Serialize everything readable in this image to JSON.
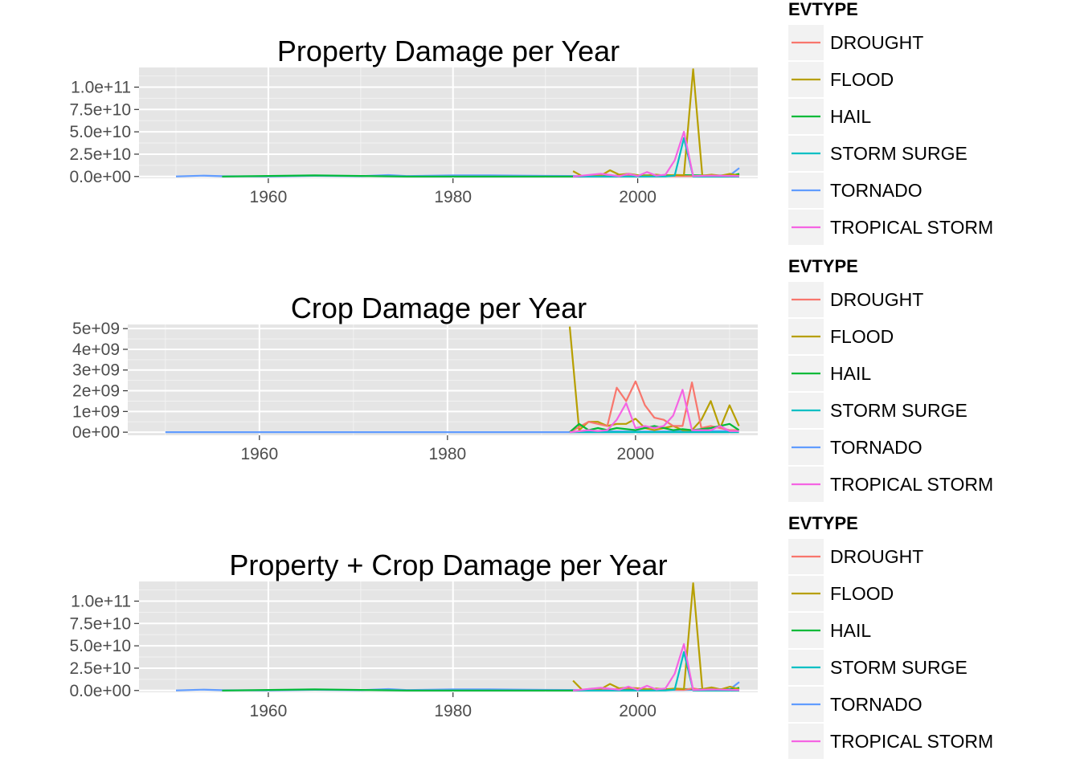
{
  "colors": {
    "panel_bg": "#e5e5e5",
    "grid": "#ffffff",
    "DROUGHT": "#f8766d",
    "FLOOD": "#b79f00",
    "HAIL": "#00ba38",
    "STORM SURGE": "#00bfc4",
    "TORNADO": "#619cff",
    "TROPICAL STORM": "#f564e3"
  },
  "legends": [
    {
      "title": "EVTYPE",
      "items": [
        "DROUGHT",
        "FLOOD",
        "HAIL",
        "STORM SURGE",
        "TORNADO",
        "TROPICAL STORM"
      ]
    },
    {
      "title": "EVTYPE",
      "items": [
        "DROUGHT",
        "FLOOD",
        "HAIL",
        "STORM SURGE",
        "TORNADO",
        "TROPICAL STORM"
      ]
    },
    {
      "title": "EVTYPE",
      "items": [
        "DROUGHT",
        "FLOOD",
        "HAIL",
        "STORM SURGE",
        "TORNADO",
        "TROPICAL STORM"
      ]
    }
  ],
  "chart_data": [
    {
      "type": "line",
      "title": "Property Damage per Year",
      "xlabel": "",
      "ylabel": "",
      "xlim": [
        1946,
        2013
      ],
      "ylim": [
        -2000000000,
        122000000000
      ],
      "x_ticks": [
        1960,
        1980,
        2000
      ],
      "y_ticks": [
        0,
        25000000000,
        50000000000,
        75000000000,
        100000000000
      ],
      "y_tick_labels": [
        "0.0e+00",
        "2.5e+10",
        "5.0e+10",
        "7.5e+10",
        "1.0e+11"
      ],
      "grid": true,
      "legend": "right",
      "series": [
        {
          "name": "TORNADO",
          "x": [
            1950,
            1953,
            1955,
            1960,
            1965,
            1970,
            1973,
            1975,
            1980,
            1984,
            1990,
            1995,
            2000,
            2005,
            2008,
            2010,
            2011
          ],
          "y": [
            100000000,
            1000000000,
            300000000,
            200000000,
            800000000,
            300000000,
            1600000000,
            500000000,
            1200000000,
            1300000000,
            700000000,
            500000000,
            400000000,
            500000000,
            1000000000,
            1500000000,
            9500000000
          ]
        },
        {
          "name": "HAIL",
          "x": [
            1955,
            1965,
            1975,
            1985,
            1993,
            1995,
            2000,
            2005,
            2010,
            2011
          ],
          "y": [
            0,
            1200000000,
            0,
            0,
            0,
            600000000,
            1200000000,
            1500000000,
            800000000,
            3000000000
          ]
        },
        {
          "name": "DROUGHT",
          "x": [
            1993,
            1995,
            1997,
            1999,
            2000,
            2001,
            2003,
            2005,
            2007,
            2009,
            2011
          ],
          "y": [
            0,
            300000000,
            200000000,
            1000000000,
            200000000,
            500000000,
            300000000,
            400000000,
            300000000,
            200000000,
            100000000
          ]
        },
        {
          "name": "FLOOD",
          "x": [
            1993,
            1994,
            1995,
            1996,
            1997,
            1998,
            1999,
            2000,
            2001,
            2002,
            2003,
            2004,
            2005,
            2006,
            2007,
            2008,
            2009,
            2010,
            2011
          ],
          "y": [
            6000000000,
            400000000,
            1500000000,
            1000000000,
            7000000000,
            2000000000,
            3000000000,
            1500000000,
            1000000000,
            2000000000,
            1000000000,
            1800000000,
            1500000000,
            120000000000,
            1000000000,
            2000000000,
            1000000000,
            3000000000,
            1000000000
          ]
        },
        {
          "name": "STORM SURGE",
          "x": [
            1993,
            2000,
            2003,
            2004,
            2005,
            2006,
            2008,
            2011
          ],
          "y": [
            0,
            0,
            100000000,
            1000000000,
            43000000000,
            0,
            0,
            0
          ]
        },
        {
          "name": "TROPICAL STORM",
          "x": [
            1993,
            1996,
            1998,
            1999,
            2000,
            2001,
            2002,
            2003,
            2004,
            2005,
            2006,
            2008,
            2011
          ],
          "y": [
            0,
            3000000000,
            300000000,
            3000000000,
            500000000,
            5000000000,
            1000000000,
            2000000000,
            18000000000,
            50000000000,
            500000000,
            1000000000,
            500000000
          ]
        }
      ]
    },
    {
      "type": "line",
      "title": "Crop Damage per Year",
      "xlabel": "",
      "ylabel": "",
      "xlim": [
        1946,
        2013
      ],
      "ylim": [
        -150000000,
        5200000000
      ],
      "x_ticks": [
        1960,
        1980,
        2000
      ],
      "y_ticks": [
        0,
        1000000000,
        2000000000,
        3000000000,
        4000000000,
        5000000000
      ],
      "y_tick_labels": [
        "0e+00",
        "1e+09",
        "2e+09",
        "3e+09",
        "4e+09",
        "5e+09"
      ],
      "grid": true,
      "legend": "right",
      "series": [
        {
          "name": "TORNADO",
          "x": [
            1950,
            1993,
            1995,
            2000,
            2005,
            2010,
            2011
          ],
          "y": [
            0,
            0,
            50000000,
            30000000,
            40000000,
            60000000,
            50000000
          ]
        },
        {
          "name": "FLOOD",
          "x": [
            1993,
            1994,
            1995,
            1996,
            1997,
            1998,
            1999,
            2000,
            2001,
            2002,
            2003,
            2004,
            2005,
            2006,
            2007,
            2008,
            2009,
            2010,
            2011
          ],
          "y": [
            5100000000,
            100000000,
            500000000,
            500000000,
            300000000,
            400000000,
            400000000,
            650000000,
            200000000,
            100000000,
            200000000,
            300000000,
            100000000,
            100000000,
            600000000,
            1500000000,
            200000000,
            1300000000,
            300000000
          ]
        },
        {
          "name": "DROUGHT",
          "x": [
            1993,
            1995,
            1996,
            1997,
            1998,
            1999,
            2000,
            2001,
            2002,
            2003,
            2004,
            2005,
            2006,
            2007,
            2008,
            2009,
            2010,
            2011
          ],
          "y": [
            0,
            500000000,
            400000000,
            300000000,
            2150000000,
            1500000000,
            2450000000,
            1300000000,
            700000000,
            600000000,
            300000000,
            300000000,
            2400000000,
            200000000,
            300000000,
            200000000,
            100000000,
            100000000
          ]
        },
        {
          "name": "HAIL",
          "x": [
            1993,
            1994,
            1995,
            1996,
            1997,
            1998,
            2000,
            2001,
            2002,
            2004,
            2005,
            2006,
            2008,
            2010,
            2011
          ],
          "y": [
            0,
            400000000,
            100000000,
            200000000,
            100000000,
            200000000,
            100000000,
            200000000,
            300000000,
            100000000,
            150000000,
            100000000,
            200000000,
            400000000,
            100000000
          ]
        },
        {
          "name": "STORM SURGE",
          "x": [
            1993,
            2005,
            2011
          ],
          "y": [
            0,
            0,
            0
          ]
        },
        {
          "name": "TROPICAL STORM",
          "x": [
            1993,
            1995,
            1996,
            1997,
            1998,
            1999,
            2000,
            2001,
            2002,
            2003,
            2004,
            2005,
            2006,
            2007,
            2008,
            2009,
            2010,
            2011
          ],
          "y": [
            0,
            100000000,
            50000000,
            100000000,
            600000000,
            1400000000,
            200000000,
            300000000,
            200000000,
            300000000,
            800000000,
            2050000000,
            100000000,
            100000000,
            100000000,
            300000000,
            50000000,
            50000000
          ]
        }
      ]
    },
    {
      "type": "line",
      "title": "Property + Crop Damage per Year",
      "xlabel": "",
      "ylabel": "",
      "xlim": [
        1946,
        2013
      ],
      "ylim": [
        -2000000000,
        122000000000
      ],
      "x_ticks": [
        1960,
        1980,
        2000
      ],
      "y_ticks": [
        0,
        25000000000,
        50000000000,
        75000000000,
        100000000000
      ],
      "y_tick_labels": [
        "0.0e+00",
        "2.5e+10",
        "5.0e+10",
        "7.5e+10",
        "1.0e+11"
      ],
      "grid": true,
      "legend": "right",
      "series": [
        {
          "name": "TORNADO",
          "x": [
            1950,
            1953,
            1955,
            1960,
            1965,
            1970,
            1973,
            1975,
            1980,
            1984,
            1990,
            1995,
            2000,
            2005,
            2008,
            2010,
            2011
          ],
          "y": [
            100000000,
            1000000000,
            300000000,
            200000000,
            800000000,
            300000000,
            1600000000,
            500000000,
            1200000000,
            1300000000,
            700000000,
            500000000,
            400000000,
            500000000,
            1000000000,
            1500000000,
            9500000000
          ]
        },
        {
          "name": "HAIL",
          "x": [
            1955,
            1965,
            1975,
            1985,
            1993,
            1995,
            2000,
            2005,
            2010,
            2011
          ],
          "y": [
            0,
            1200000000,
            0,
            0,
            0,
            700000000,
            1300000000,
            1600000000,
            1200000000,
            3100000000
          ]
        },
        {
          "name": "DROUGHT",
          "x": [
            1993,
            1995,
            1997,
            1998,
            1999,
            2000,
            2001,
            2003,
            2005,
            2006,
            2007,
            2009,
            2011
          ],
          "y": [
            0,
            800000000,
            500000000,
            2200000000,
            2500000000,
            2600000000,
            1800000000,
            900000000,
            700000000,
            2400000000,
            500000000,
            400000000,
            200000000
          ]
        },
        {
          "name": "FLOOD",
          "x": [
            1993,
            1994,
            1995,
            1996,
            1997,
            1998,
            1999,
            2000,
            2001,
            2002,
            2003,
            2004,
            2005,
            2006,
            2007,
            2008,
            2009,
            2010,
            2011
          ],
          "y": [
            11000000000,
            500000000,
            2000000000,
            1500000000,
            7300000000,
            2400000000,
            3400000000,
            2100000000,
            1200000000,
            2100000000,
            1200000000,
            2100000000,
            1600000000,
            120000000000,
            1600000000,
            3500000000,
            1200000000,
            4300000000,
            1300000000
          ]
        },
        {
          "name": "STORM SURGE",
          "x": [
            1993,
            2000,
            2003,
            2004,
            2005,
            2006,
            2008,
            2011
          ],
          "y": [
            0,
            0,
            100000000,
            1000000000,
            43000000000,
            0,
            0,
            0
          ]
        },
        {
          "name": "TROPICAL STORM",
          "x": [
            1993,
            1996,
            1998,
            1999,
            2000,
            2001,
            2002,
            2003,
            2004,
            2005,
            2006,
            2008,
            2011
          ],
          "y": [
            0,
            3000000000,
            900000000,
            4400000000,
            700000000,
            5300000000,
            1200000000,
            2300000000,
            18800000000,
            52000000000,
            600000000,
            1100000000,
            500000000
          ]
        }
      ]
    }
  ]
}
